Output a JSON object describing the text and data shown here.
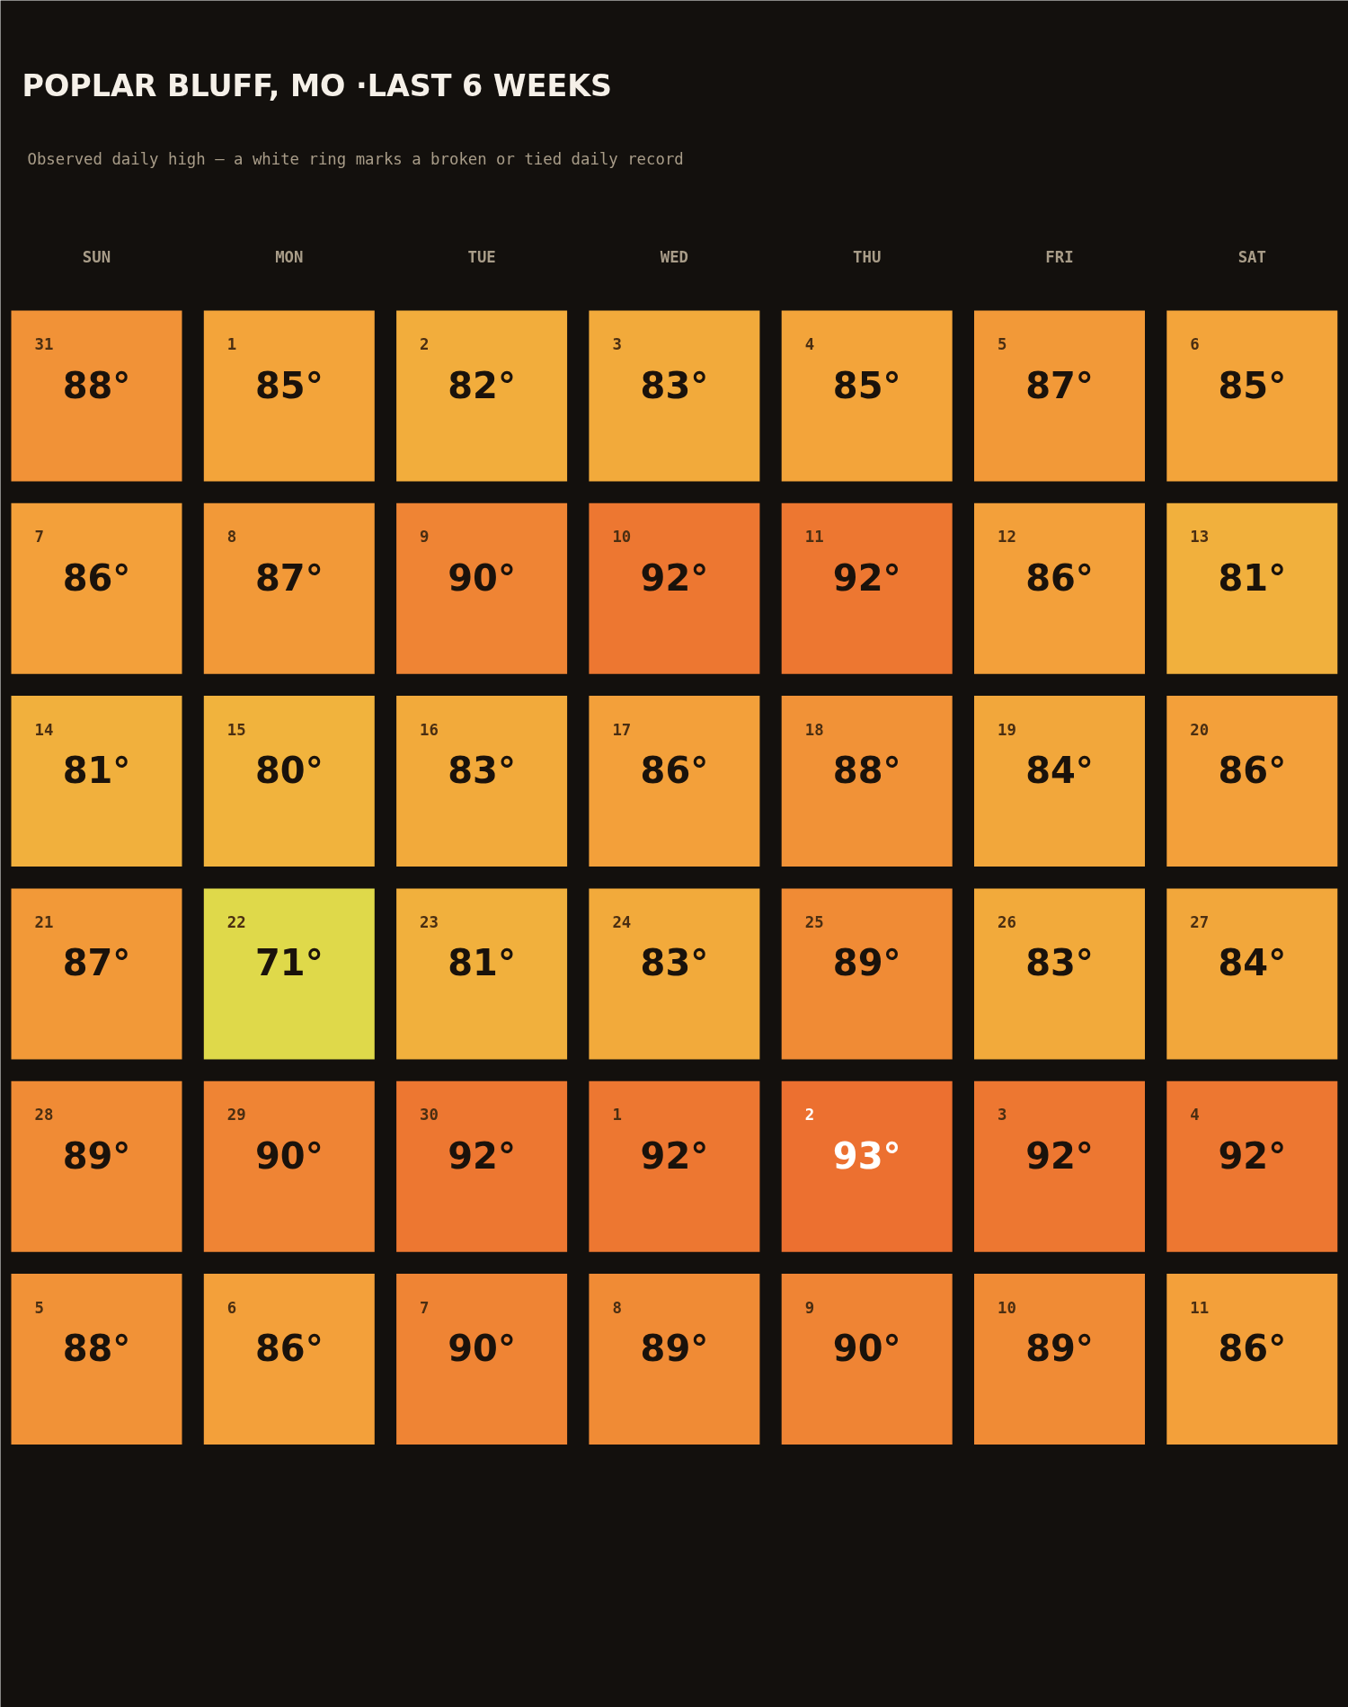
{
  "chart_data": {
    "type": "heatmap",
    "title": "POPLAR BLUFF, MO ·LAST 6 WEEKS",
    "subtitle": "Observed daily high — a white ring marks a broken or tied daily record",
    "categories": [
      "SUN",
      "MON",
      "TUE",
      "WED",
      "THU",
      "FRI",
      "SAT"
    ],
    "y_categories": [
      null,
      null,
      null,
      null,
      null,
      null
    ],
    "cells": [
      [
        88,
        85,
        82,
        83,
        85,
        87,
        85
      ],
      [
        86,
        87,
        90,
        92,
        92,
        86,
        81
      ],
      [
        81,
        80,
        83,
        86,
        88,
        84,
        86
      ],
      [
        87,
        71,
        81,
        83,
        89,
        83,
        84
      ],
      [
        89,
        90,
        92,
        92,
        93,
        92,
        92
      ],
      [
        88,
        86,
        90,
        89,
        90,
        89,
        86
      ]
    ],
    "cell_labels": [
      [
        "88°",
        "85°",
        "82°",
        "83°",
        "85°",
        "87°",
        "85°"
      ],
      [
        "86°",
        "87°",
        "90°",
        "92°",
        "92°",
        "86°",
        "81°"
      ],
      [
        "81°",
        "80°",
        "83°",
        "86°",
        "88°",
        "84°",
        "86°"
      ],
      [
        "87°",
        "71°",
        "81°",
        "83°",
        "89°",
        "83°",
        "84°"
      ],
      [
        "89°",
        "90°",
        "92°",
        "92°",
        "93°",
        "92°",
        "92°"
      ],
      [
        "88°",
        "86°",
        "90°",
        "89°",
        "90°",
        "89°",
        "86°"
      ]
    ],
    "annotations": [
      "31",
      "1",
      "2",
      "3",
      "4",
      "5",
      "6",
      "7",
      "8",
      "9",
      "10",
      "11",
      "12",
      "13",
      "14",
      "15",
      "16",
      "17",
      "18",
      "19",
      "20",
      "21",
      "22",
      "23",
      "24",
      "25",
      "26",
      "27",
      "28",
      "29",
      "30",
      "1",
      "2",
      "3",
      "4",
      "5",
      "6",
      "7",
      "8",
      "9",
      "10",
      "11"
    ],
    "colors": [
      "#dfd94a",
      "#f0b83e",
      "#f3a23a",
      "#ec7030"
    ]
  }
}
